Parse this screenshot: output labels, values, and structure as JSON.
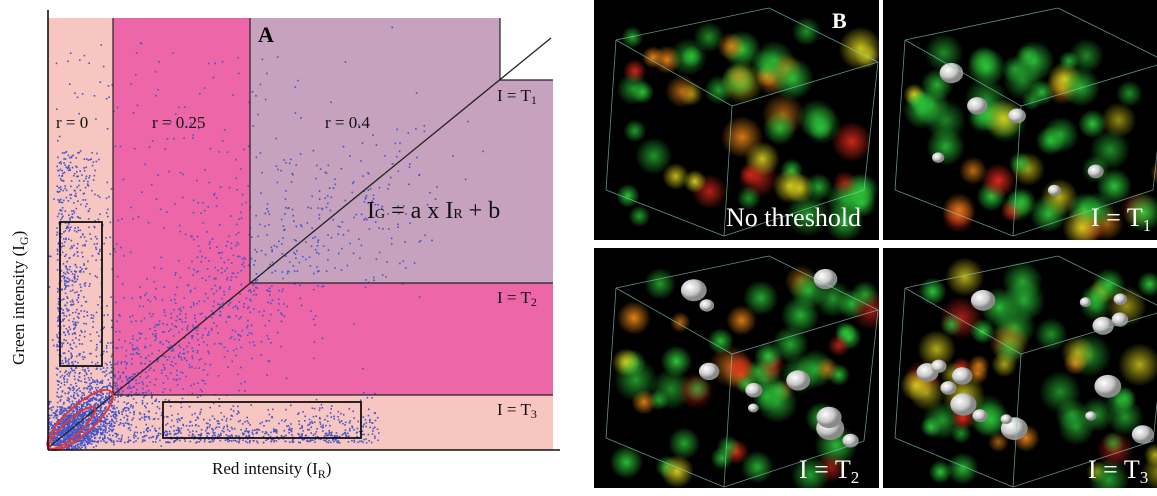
{
  "panelA": {
    "letter": "A",
    "xlabel": "Red intensity (I",
    "xlabel_sub": "R",
    "xlabel_close": ")",
    "ylabel": "Green intensity (I",
    "ylabel_sub": "G",
    "ylabel_close": ")",
    "regions": [
      {
        "label": "r = 0"
      },
      {
        "label": "r = 0.25"
      },
      {
        "label": "r = 0.4"
      }
    ],
    "thresholds": [
      {
        "label": "I = T",
        "sub": "1"
      },
      {
        "label": "I = T",
        "sub": "2"
      },
      {
        "label": "I = T",
        "sub": "3"
      }
    ],
    "equation": {
      "lhs": "I",
      "lhs_sub": "G",
      "mid": " = a  x  I",
      "rhs_sub": "R",
      "rhs": " + b"
    },
    "colors": {
      "light_pink": "#f8c6c0",
      "magenta": "#ec66a8",
      "mauve": "#c6a2be",
      "points": "#4455c8",
      "ellipse": "#e23838"
    }
  },
  "panelB": {
    "letter": "B",
    "tiles": [
      {
        "label": "No threshold",
        "sub": ""
      },
      {
        "label": "I = T",
        "sub": "1"
      },
      {
        "label": "I = T",
        "sub": "2"
      },
      {
        "label": "I = T",
        "sub": "3"
      }
    ]
  },
  "chart_data": {
    "type": "scatter",
    "title": "A",
    "xlabel": "Red intensity (IR)",
    "ylabel": "Green intensity (IG)",
    "grid": false,
    "regions": [
      "r = 0",
      "r = 0.25",
      "r = 0.4"
    ],
    "thresholds": [
      "I = T1",
      "I = T2",
      "I = T3"
    ],
    "fit_line": "IG = a x IR + b",
    "series": [
      {
        "values_note_density": "dense cluster near origin, spread along diagonal, vertical band near y-axis and horizontal band near x-axis"
      }
    ]
  }
}
